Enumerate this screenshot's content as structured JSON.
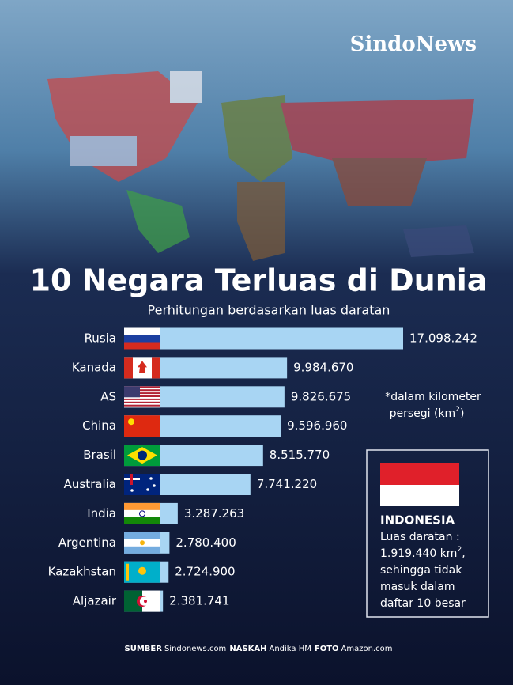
{
  "brand": "SindoNews",
  "chart_data": {
    "type": "bar",
    "orientation": "horizontal",
    "title": "10 Negara Terluas di Dunia",
    "subtitle": "Perhitungan berdasarkan luas daratan",
    "categories": [
      "Rusia",
      "Kanada",
      "AS",
      "China",
      "Brasil",
      "Australia",
      "India",
      "Argentina",
      "Kazakhstan",
      "Aljazair"
    ],
    "values": [
      17098242,
      9984670,
      9826675,
      9596960,
      8515770,
      7741220,
      3287263,
      2780400,
      2724900,
      2381741
    ],
    "value_labels": [
      "17.098.242",
      "9.984.670",
      "9.826.675",
      "9.596.960",
      "8.515.770",
      "7.741.220",
      "3.287.263",
      "2.780.400",
      "2.724.900",
      "2.381.741"
    ],
    "color": "#a8d5f3"
  },
  "note": {
    "line1": "*dalam kilometer",
    "line2": "persegi (km",
    "sup": "2",
    "close": ")"
  },
  "indonesia": {
    "title": "INDONESIA",
    "line1": "Luas daratan :",
    "area": "1.919.440 km",
    "area_sup": "2",
    "area_tail": ",",
    "line3": "sehingga tidak",
    "line4": "masuk dalam",
    "line5": "daftar 10 besar"
  },
  "footer": [
    {
      "label": "SUMBER",
      "text": "Sindonews.com"
    },
    {
      "label": "NASKAH",
      "text": "Andika HM"
    },
    {
      "label": "FOTO",
      "text": "Amazon.com"
    }
  ]
}
